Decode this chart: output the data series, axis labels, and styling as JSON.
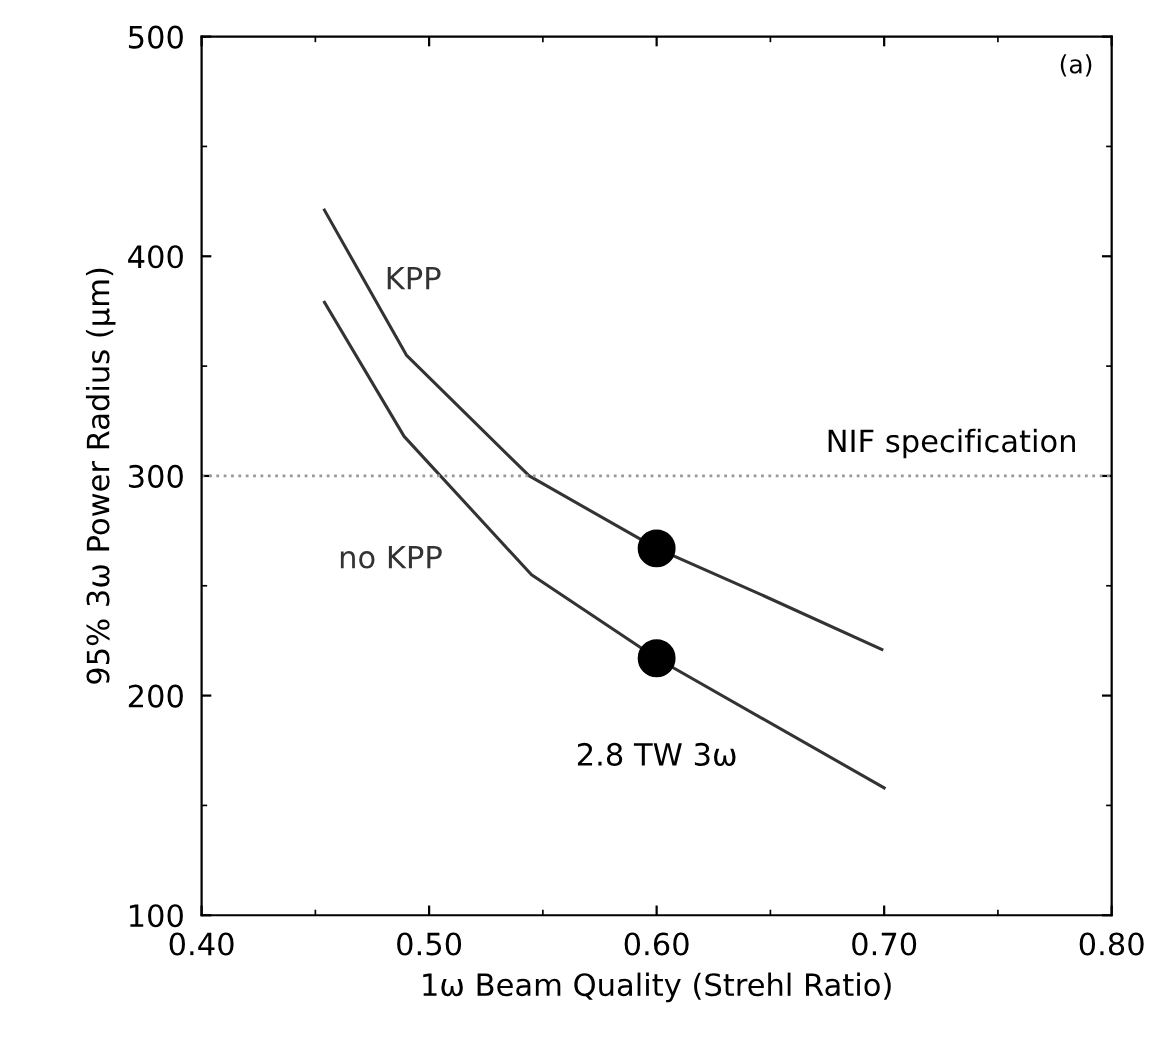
{
  "chart_data": {
    "type": "line",
    "xlabel": "1ω Beam Quality (Strehl Ratio)",
    "ylabel": "95% 3ω Power Radius (μm)",
    "xlim": [
      0.4,
      0.8
    ],
    "ylim": [
      100,
      500
    ],
    "xticks": [
      {
        "value": 0.4,
        "label": "0.40"
      },
      {
        "value": 0.5,
        "label": "0.50"
      },
      {
        "value": 0.6,
        "label": "0.60"
      },
      {
        "value": 0.7,
        "label": "0.70"
      },
      {
        "value": 0.8,
        "label": "0.80"
      }
    ],
    "yticks": [
      100,
      200,
      300,
      400,
      500
    ],
    "grid": false,
    "line_style": "solid",
    "series": [
      {
        "name": "KPP",
        "color": "#333333",
        "x": [
          0.454,
          0.49,
          0.544,
          0.6,
          0.648,
          0.699
        ],
        "values": [
          421,
          355,
          300,
          267,
          245,
          221
        ]
      },
      {
        "name": "no KPP",
        "color": "#333333",
        "x": [
          0.454,
          0.489,
          0.545,
          0.6,
          0.7
        ],
        "values": [
          379,
          318,
          255,
          217,
          158
        ]
      },
      {
        "type": "scatter",
        "marker": "circle",
        "color": "#000000",
        "x": [
          0.6,
          0.6
        ],
        "values": [
          267,
          217
        ]
      }
    ],
    "ref_lines": [
      {
        "axis": "y",
        "value": 300,
        "label": "NIF specification",
        "color": "#999999",
        "line_style": "dotted"
      }
    ],
    "annotations": [
      {
        "text": "2.8 TW 3ω",
        "x": 0.6,
        "y": 217
      },
      "(a)"
    ]
  }
}
